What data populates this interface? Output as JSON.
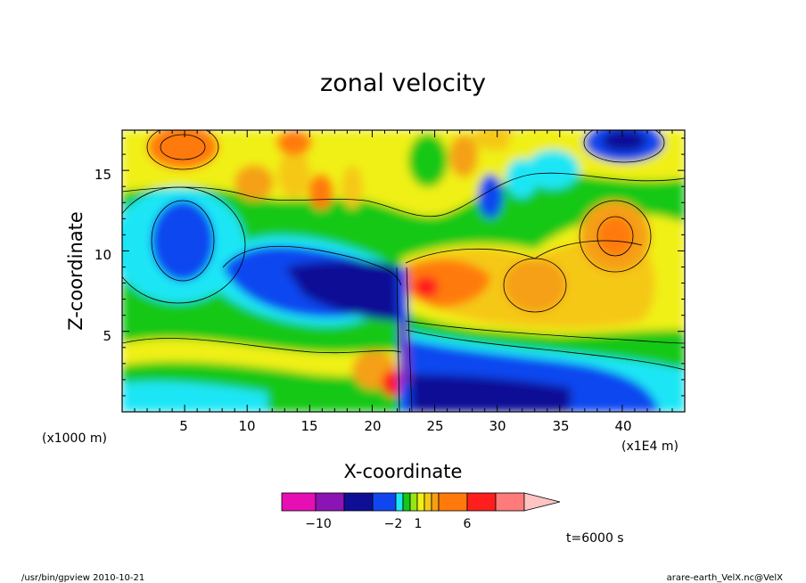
{
  "chart_data": {
    "type": "heatmap",
    "title": "zonal velocity",
    "xlabel": "X-coordinate",
    "ylabel": "Z-coordinate",
    "x_unit": "(x1E4 m)",
    "y_unit": "(x1000 m)",
    "xlim": [
      0,
      45
    ],
    "ylim": [
      0,
      17.5
    ],
    "x_ticks": [
      "5",
      "10",
      "15",
      "20",
      "25",
      "30",
      "35",
      "40"
    ],
    "y_ticks": [
      "5",
      "10",
      "15"
    ],
    "colorbar": {
      "ticks": [
        "−10",
        "−2",
        "1",
        "6"
      ],
      "colors": [
        "#e60fb4",
        "#8c14b4",
        "#0f0f96",
        "#0f46f0",
        "#1ee6f5",
        "#14c814",
        "#96e614",
        "#f0f014",
        "#f5c814",
        "#f5a014",
        "#ff7a0a",
        "#ff1e1e",
        "#ff7a7a",
        "#ffc3c3"
      ],
      "extend": "max"
    },
    "time_label": "t=6000 s",
    "footer_left": "/usr/bin/gpview   2010-10-21",
    "footer_right": "arare-earth_VelX.nc@VelX"
  }
}
